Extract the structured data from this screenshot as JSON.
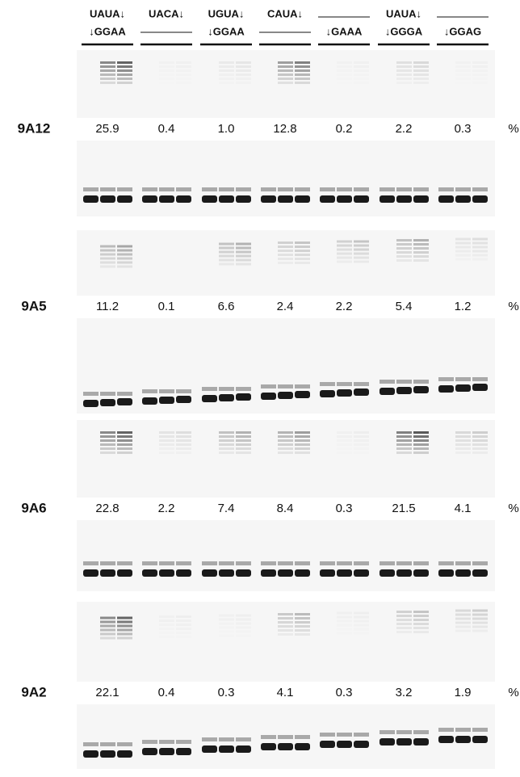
{
  "headers": [
    {
      "top": "UAUA↓",
      "bottom": "↓GGAA"
    },
    {
      "top": "UACA↓"
    },
    {
      "top": "UGUA↓",
      "bottom": "↓GGAA"
    },
    {
      "top": "CAUA↓"
    },
    {
      "bottom": "↓GAAA"
    },
    {
      "top": "UAUA↓",
      "bottom": "↓GGGA"
    },
    {
      "bottom": "↓GGAG"
    }
  ],
  "unit": "%",
  "rows": [
    {
      "label": "9A12",
      "values": [
        "25.9",
        "0.4",
        "1.0",
        "12.8",
        "0.2",
        "2.2",
        "0.3"
      ]
    },
    {
      "label": "9A5",
      "values": [
        "11.2",
        "0.1",
        "6.6",
        "2.4",
        "2.2",
        "5.4",
        "1.2"
      ]
    },
    {
      "label": "9A6",
      "values": [
        "22.8",
        "2.2",
        "7.4",
        "8.4",
        "0.3",
        "21.5",
        "4.1"
      ]
    },
    {
      "label": "9A2",
      "values": [
        "22.1",
        "0.4",
        "0.3",
        "4.1",
        "0.3",
        "3.2",
        "1.9"
      ]
    }
  ]
}
